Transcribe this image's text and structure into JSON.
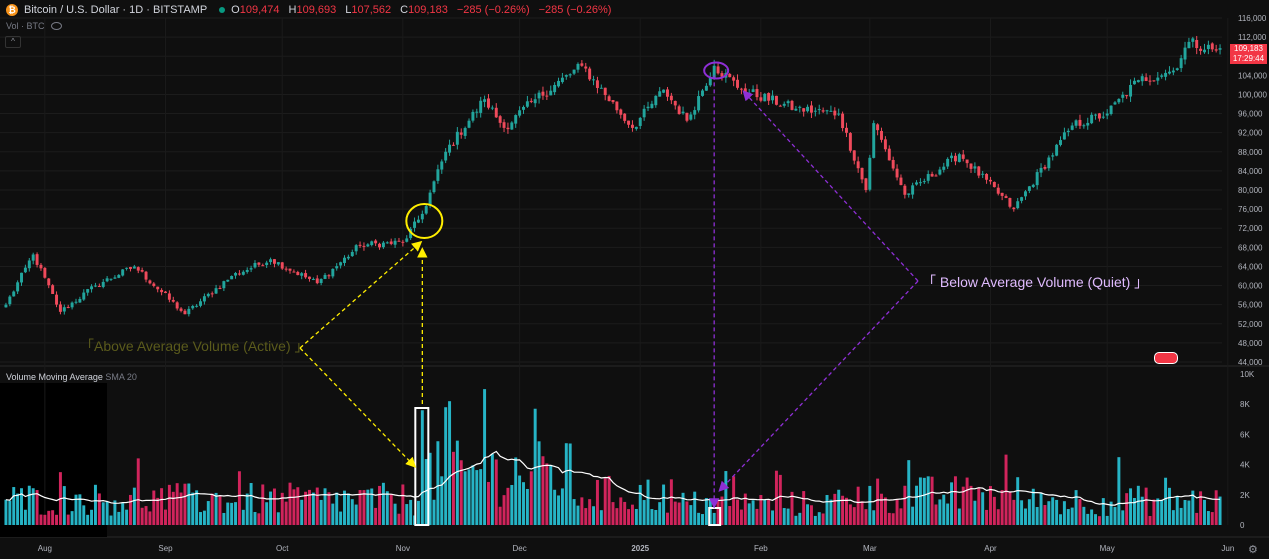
{
  "header": {
    "symbol": "Bitcoin / U.S. Dollar · 1D · BITSTAMP",
    "coin_glyph": "₿",
    "ohlc": [
      {
        "k": "O",
        "v": "109,474"
      },
      {
        "k": "H",
        "v": "109,693"
      },
      {
        "k": "L",
        "v": "107,562"
      },
      {
        "k": "C",
        "v": "109,183"
      }
    ],
    "change": "−285 (−0.26%)",
    "change2": "−285 (−0.26%)",
    "sub_label": "Vol · BTC",
    "collapse_glyph": "^"
  },
  "price_badge": {
    "price": "109,183",
    "countdown": "17:29:44"
  },
  "volume_pane": {
    "name": "Volume Moving Average",
    "params": "SMA 20"
  },
  "annotations": {
    "above": "「Above Average Volume (Active) 」",
    "below": "「 Below Average Volume (Quiet) 」"
  },
  "settings_glyph": "⚙",
  "colors": {
    "bull": "#22a59d",
    "bear": "#ef4a5b",
    "vol_bull": "#26b4c6",
    "vol_bear": "#d1245c",
    "sma": "#ffffff",
    "yellow": "#ffee00",
    "purple": "#8e2fd6",
    "background": "#0f0f0f"
  },
  "chart_data": [
    {
      "type": "candlestick",
      "price_axis_ticks": [
        "116,000",
        "112,000",
        "108,000",
        "104,000",
        "100,000",
        "96,000",
        "92,000",
        "88,000",
        "84,000",
        "80,000",
        "76,000",
        "72,000",
        "68,000",
        "64,000",
        "60,000",
        "56,000",
        "52,000",
        "48,000",
        "44,000"
      ],
      "ylim": [
        44000,
        116000
      ],
      "x_labels": [
        "Aug",
        "Sep",
        "Oct",
        "Nov",
        "Dec",
        "2025",
        "Feb",
        "Mar",
        "Apr",
        "May",
        "Jun"
      ],
      "x_range": [
        "2024-07-22",
        "2025-05-30"
      ],
      "anchors": [
        {
          "d": "2024-07-22",
          "p": 56000
        },
        {
          "d": "2024-07-29",
          "p": 66500
        },
        {
          "d": "2024-08-05",
          "p": 54500
        },
        {
          "d": "2024-08-14",
          "p": 60000
        },
        {
          "d": "2024-08-24",
          "p": 64000
        },
        {
          "d": "2024-09-06",
          "p": 54000
        },
        {
          "d": "2024-09-18",
          "p": 62000
        },
        {
          "d": "2024-09-28",
          "p": 65500
        },
        {
          "d": "2024-10-10",
          "p": 60500
        },
        {
          "d": "2024-10-21",
          "p": 68500
        },
        {
          "d": "2024-11-01",
          "p": 69000
        },
        {
          "d": "2024-11-06",
          "p": 75000
        },
        {
          "d": "2024-11-12",
          "p": 88000
        },
        {
          "d": "2024-11-22",
          "p": 99000
        },
        {
          "d": "2024-11-27",
          "p": 93000
        },
        {
          "d": "2024-12-05",
          "p": 99000
        },
        {
          "d": "2024-12-17",
          "p": 106000
        },
        {
          "d": "2024-12-30",
          "p": 93000
        },
        {
          "d": "2025-01-07",
          "p": 101000
        },
        {
          "d": "2025-01-13",
          "p": 94500
        },
        {
          "d": "2025-01-20",
          "p": 106000
        },
        {
          "d": "2025-01-27",
          "p": 101000
        },
        {
          "d": "2025-02-10",
          "p": 97000
        },
        {
          "d": "2025-02-21",
          "p": 96000
        },
        {
          "d": "2025-02-28",
          "p": 80000
        },
        {
          "d": "2025-03-02",
          "p": 94000
        },
        {
          "d": "2025-03-10",
          "p": 79000
        },
        {
          "d": "2025-03-24",
          "p": 87500
        },
        {
          "d": "2025-04-07",
          "p": 76000
        },
        {
          "d": "2025-04-22",
          "p": 93500
        },
        {
          "d": "2025-05-01",
          "p": 96000
        },
        {
          "d": "2025-05-09",
          "p": 103000
        },
        {
          "d": "2025-05-18",
          "p": 105000
        },
        {
          "d": "2025-05-22",
          "p": 111000
        },
        {
          "d": "2025-05-29",
          "p": 109183
        }
      ]
    },
    {
      "type": "bar",
      "name": "Volume Moving Average",
      "volume_axis_ticks": [
        "10K",
        "8K",
        "6K",
        "4K",
        "2K",
        "0"
      ],
      "ylim": [
        0,
        10000
      ],
      "volume_regimes": [
        {
          "from": "2024-07-22",
          "base": 1700
        },
        {
          "from": "2024-11-05",
          "base": 3400
        },
        {
          "from": "2024-12-15",
          "base": 2000
        },
        {
          "from": "2025-01-10",
          "base": 1400
        },
        {
          "from": "2025-02-25",
          "base": 2000
        },
        {
          "from": "2025-04-10",
          "base": 1600
        }
      ],
      "spikes": [
        {
          "d": "2024-08-05",
          "v": 3500
        },
        {
          "d": "2024-11-06",
          "v": 7600
        },
        {
          "d": "2024-11-12",
          "v": 7800
        },
        {
          "d": "2024-11-13",
          "v": 8200
        },
        {
          "d": "2024-11-22",
          "v": 9000
        },
        {
          "d": "2024-12-05",
          "v": 7700
        },
        {
          "d": "2025-01-20",
          "v": 800
        }
      ]
    }
  ]
}
